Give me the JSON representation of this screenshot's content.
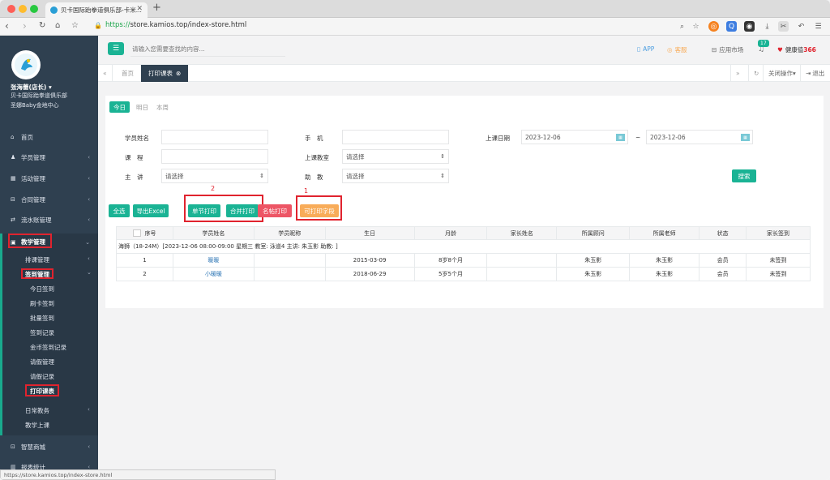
{
  "browser": {
    "tab_title": "贝卡国际跆拳道俱乐部-卡米...",
    "url_scheme": "https://",
    "url_rest": "store.kamios.top/index-store.html",
    "status_url": "https://store.kamios.top/index-store.html"
  },
  "sidebar": {
    "user_name": "张海蕾(店长)",
    "org_line": "贝卡国际跆拳道俱乐部",
    "store_line": "圣娜Baby金地中心",
    "menus": [
      "首页",
      "学员管理",
      "活动管理",
      "合同管理",
      "流水账管理",
      "教学管理"
    ],
    "teaching_sub": [
      "排课管理",
      "签到管理"
    ],
    "signin_sub": [
      "今日签到",
      "刷卡签到",
      "批量签到",
      "签到记录",
      "金币签到记录",
      "请假管理",
      "请假记录",
      "打印课表"
    ],
    "teaching_more": [
      "日常教务",
      "教学上课"
    ],
    "bottom_menus": [
      "智慧商城",
      "报表统计"
    ]
  },
  "header": {
    "search_placeholder": "请输入您需要查找的内容...",
    "app": "APP",
    "kefu": "客服",
    "market": "应用市场",
    "badge": "17",
    "health_label": "健康值",
    "health_value": "366"
  },
  "pagetabs": {
    "home": "首页",
    "current": "打印课表",
    "close_ops": "关闭操作",
    "logout": "退出"
  },
  "date_tabs": [
    "今日",
    "明日",
    "本周"
  ],
  "filters": {
    "student_name": "学员姓名",
    "phone": "手　机",
    "class_date": "上课日期",
    "date_from": "2023-12-06",
    "date_to": "2023-12-06",
    "date_sep": "~",
    "course": "课　程",
    "classroom": "上课教室",
    "classroom_value": "请选择",
    "lecturer": "主　讲",
    "lecturer_value": "请选择",
    "assistant": "助　教",
    "assistant_value": "请选择",
    "search_btn": "搜索"
  },
  "actions": {
    "select_all": "全选",
    "export": "导出Excel",
    "single_print": "单节打印",
    "merge_print": "合并打印",
    "sticker_print": "名帖打印",
    "printable_fields": "可打印字段",
    "ann1": "1",
    "ann2": "2"
  },
  "table": {
    "headers": [
      "序号",
      "学员姓名",
      "学员昵称",
      "生日",
      "月龄",
      "家长姓名",
      "所属顾问",
      "所属老师",
      "状态",
      "家长签到"
    ],
    "group_row": "海狮（18-24M）[2023-12-06 08:00-09:00 星期三 教室: 泳道4 主讲: 朱玉影 助教: ]",
    "rows": [
      [
        "1",
        "暖暖",
        "",
        "2015-03-09",
        "8岁8个月",
        "",
        "朱玉影",
        "朱玉影",
        "会员",
        "未签到"
      ],
      [
        "2",
        "小暖暖",
        "",
        "2018-06-29",
        "5岁5个月",
        "",
        "朱玉影",
        "朱玉影",
        "会员",
        "未签到"
      ]
    ]
  }
}
